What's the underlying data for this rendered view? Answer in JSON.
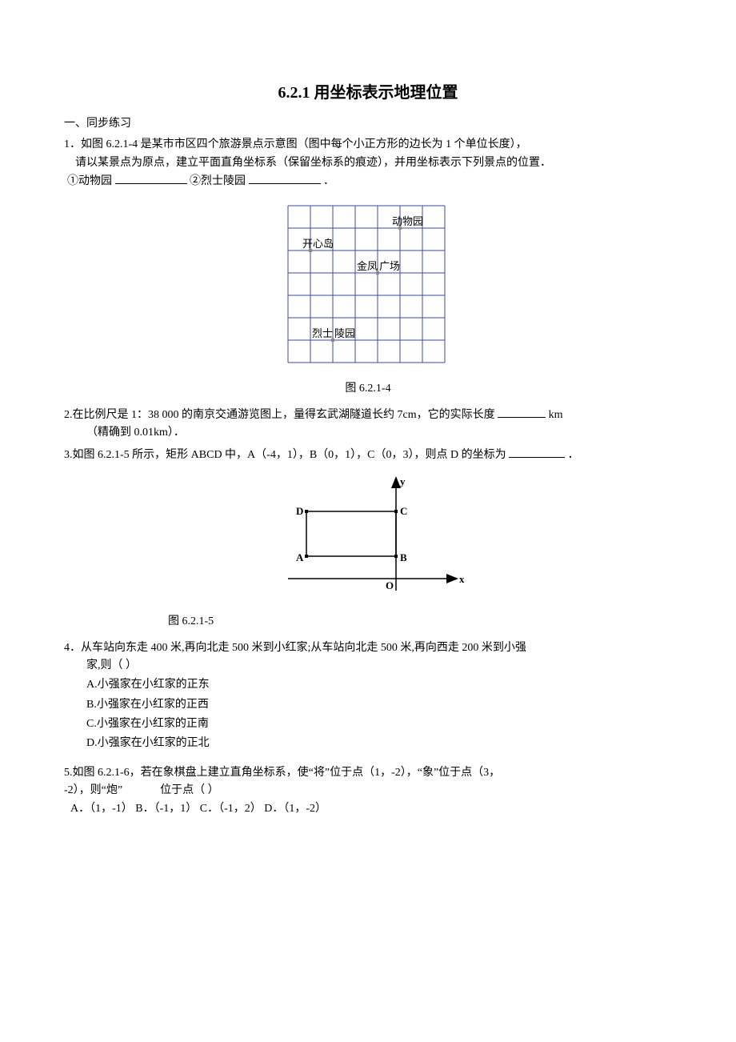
{
  "title": "6.2.1 用坐标表示地理位置",
  "section1": "一、同步练习",
  "q1": {
    "text": "1．如图 6.2.1-4 是某市市区四个旅游景点示意图（图中每个小正方形的边长为 1 个单位长度），",
    "text2": "请以某景点为原点，建立平面直角坐标系（保留坐标系的痕迹），并用坐标表示下列景点的位置．",
    "b1": "①动物园",
    "b2": "②烈士陵园",
    "period": "．"
  },
  "fig1": {
    "caption": "图 6.2.1-4",
    "cols": 7,
    "rows": 7,
    "cell": 28,
    "border_color": "#3b4aa0",
    "labels": {
      "zoo": "动物园",
      "island": "开心岛",
      "plaza": "金凤广场",
      "martyrs": "烈士陵园"
    },
    "dot_color": "#888"
  },
  "q2": {
    "text": "2.在比例尺是 1：38 000 的南京交通游览图上，量得玄武湖隧道长约 7cm，它的实际长度",
    "unit": "km",
    "text2": "（精确到 0.01km）．"
  },
  "q3": {
    "text": "3.如图 6.2.1-5 所示，矩形 ABCD 中，A（-4，1），B（0，1），C（0，3），则点 D 的坐标为",
    "period": "．"
  },
  "fig2": {
    "caption": "图 6.2.1-5",
    "labels": {
      "A": "A",
      "B": "B",
      "C": "C",
      "D": "D",
      "O": "O",
      "x": "x",
      "y": "y"
    },
    "line_color": "#000",
    "grid_color": "#000"
  },
  "q4": {
    "text": "4．从车站向东走 400 米,再向北走 500 米到小红家;从车站向北走 500 米,再向西走 200 米到小强",
    "text2": "家,则（    ）",
    "A": "A.小强家在小红家的正东",
    "B": "B.小强家在小红家的正西",
    "C": "C.小强家在小红家的正南",
    "D": "D.小强家在小红家的正北"
  },
  "q5": {
    "l1": "5.如图 6.2.1-6，若在象棋盘上建立直角坐标系，使“将”位于点（1，-2），“象”位于点（3，",
    "l2a": "-2），则“炮”",
    "l2b": "位于点（      ）",
    "opts": "A．（1，-1）  B．（-1，1）  C．（-1，2）  D．（1，-2）"
  }
}
